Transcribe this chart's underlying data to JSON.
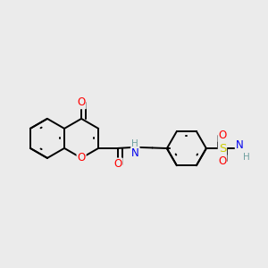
{
  "background_color": "#ebebeb",
  "figsize": [
    3.0,
    3.0
  ],
  "dpi": 100,
  "colors": {
    "bond": "#000000",
    "O": "#ff0000",
    "N": "#0000ee",
    "S": "#cccc00",
    "H_label": "#70a0a0"
  },
  "bond_lw": 1.4,
  "fs": 8.5,
  "fs_small": 7.5
}
